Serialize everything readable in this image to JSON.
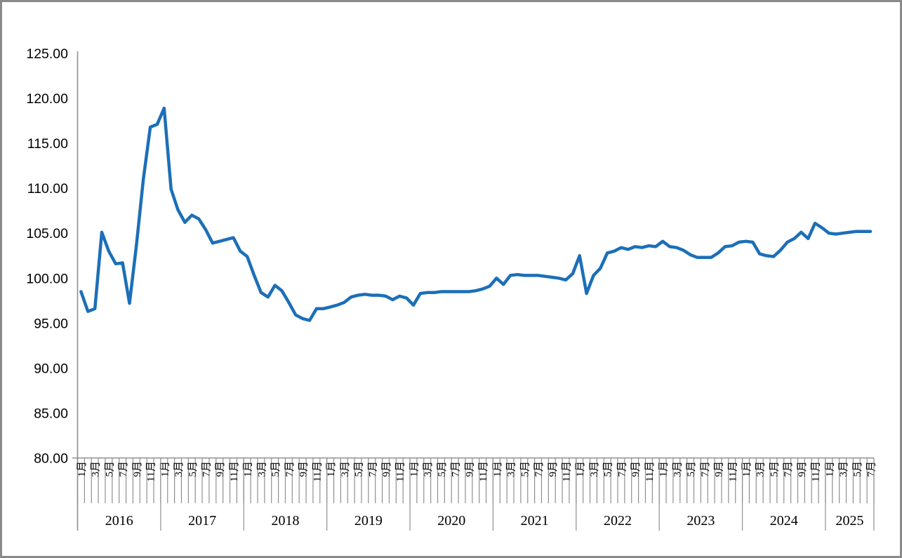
{
  "window": {
    "description": "line chart of monthly index values"
  },
  "colors": {
    "series_line": "#1c6fb8",
    "axis_line": "#8f8f8f",
    "tick_line": "#8f8f8f",
    "frame_border": "#8a8a8a",
    "background": "#ffffff",
    "label_text": "#000000"
  },
  "chart_data": {
    "type": "line",
    "title": "",
    "xlabel": "",
    "ylabel": "",
    "frequency": "monthly",
    "start": "2016-01",
    "end": "2025-07",
    "grid": false,
    "legend": "none",
    "y_axis": {
      "min": 80,
      "max": 125,
      "step": 5,
      "tick_labels": [
        "125.00",
        "120.00",
        "115.00",
        "110.00",
        "105.00",
        "100.00",
        "95.00",
        "90.00",
        "85.00",
        "80.00"
      ]
    },
    "x_axis": {
      "years": [
        "2016",
        "2017",
        "2018",
        "2019",
        "2020",
        "2021",
        "2022",
        "2023",
        "2024",
        "2025"
      ],
      "months_per_year": 12,
      "last_year_month_count": 7,
      "month_tick_labels": [
        "1月",
        "3月",
        "5月",
        "7月",
        "9月",
        "11月"
      ],
      "month_label_step": 2
    },
    "series": [
      {
        "name": "index",
        "color": "#1c6fb8",
        "values": [
          98.5,
          96.3,
          96.6,
          105.1,
          103.0,
          101.6,
          101.7,
          97.2,
          103.7,
          111.0,
          116.8,
          117.1,
          118.9,
          109.9,
          107.6,
          106.2,
          107.0,
          106.6,
          105.4,
          103.9,
          104.1,
          104.3,
          104.5,
          103.0,
          102.4,
          100.3,
          98.4,
          97.9,
          99.2,
          98.6,
          97.3,
          95.9,
          95.5,
          95.3,
          96.6,
          96.6,
          96.8,
          97.0,
          97.3,
          97.9,
          98.1,
          98.2,
          98.1,
          98.1,
          98.0,
          97.6,
          98.0,
          97.8,
          97.0,
          98.3,
          98.4,
          98.4,
          98.5,
          98.5,
          98.5,
          98.5,
          98.5,
          98.6,
          98.8,
          99.1,
          100.0,
          99.3,
          100.3,
          100.4,
          100.3,
          100.3,
          100.3,
          100.2,
          100.1,
          100.0,
          99.8,
          100.5,
          102.5,
          98.3,
          100.3,
          101.1,
          102.8,
          103.0,
          103.4,
          103.2,
          103.5,
          103.4,
          103.6,
          103.5,
          104.1,
          103.5,
          103.4,
          103.1,
          102.6,
          102.3,
          102.3,
          102.3,
          102.8,
          103.5,
          103.6,
          104.0,
          104.1,
          104.0,
          102.7,
          102.5,
          102.4,
          103.1,
          104.0,
          104.4,
          105.1,
          104.4,
          106.1,
          105.6,
          105.0,
          104.9,
          105.0,
          105.1,
          105.2,
          105.2,
          105.2
        ]
      }
    ]
  }
}
